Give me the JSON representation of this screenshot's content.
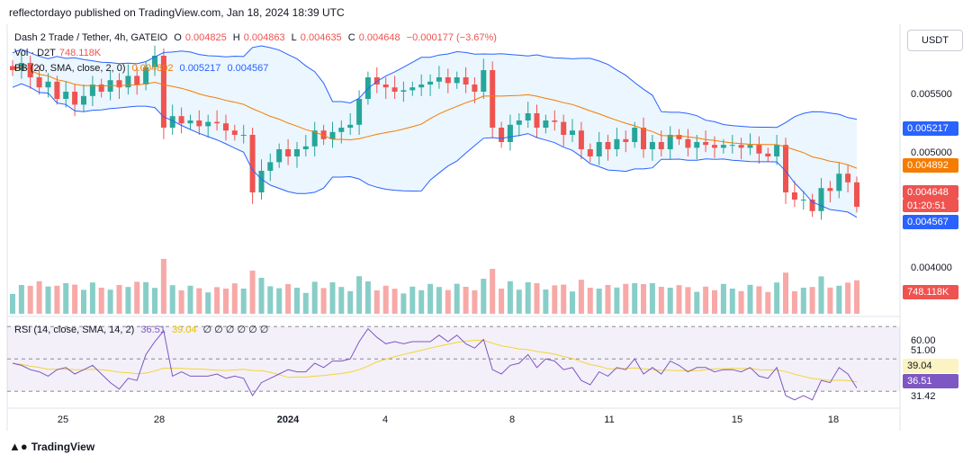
{
  "header": {
    "publisher": "reflectordayo published on TradingView.com, Jan 18, 2024 18:39 UTC"
  },
  "legend": {
    "symbol": "Dash 2 Trade / Tether, 4h, GATEIO",
    "o_label": "O",
    "o": "0.004825",
    "h_label": "H",
    "h": "0.004863",
    "l_label": "L",
    "l": "0.004635",
    "c_label": "C",
    "c": "0.004648",
    "change": "−0.000177 (−3.67%)",
    "vol_label": "Vol · D2T",
    "vol": "748.118K",
    "bb_label": "BB (20, SMA, close, 2, 0)",
    "bb_basis": "0.004892",
    "bb_upper": "0.005217",
    "bb_lower": "0.004567",
    "rsi_label": "RSI (14, close, SMA, 14, 2)",
    "rsi": "36.51",
    "rsi_ma": "39.04",
    "rsi_extra": "∅ ∅ ∅ ∅ ∅ ∅"
  },
  "currency_button": "USDT",
  "colors": {
    "up": "#26a69a",
    "down": "#ef5350",
    "band": "#2962ff",
    "basis": "#f57c00",
    "rsi_line": "#7e57c2",
    "rsi_ma": "#f5d430"
  },
  "price_tags": {
    "upper": "0.005217",
    "basis": "0.004892",
    "close": "0.004648",
    "countdown": "01:20:51",
    "lower": "0.004567",
    "volume": "748.118K",
    "rsi_ma": "39.04",
    "rsi": "36.51"
  },
  "chart_data": {
    "type": "candlestick",
    "interval": "4h",
    "price_axis": {
      "ticks": [
        "0.005500",
        "0.005000",
        "0.004000"
      ],
      "range": [
        0.0039,
        0.0059
      ]
    },
    "rsi_axis": {
      "ticks": [
        "60.00",
        "51.00",
        "31.42"
      ],
      "range": [
        28,
        68
      ]
    },
    "x_ticks": [
      "25",
      "28",
      "2024",
      "4",
      "8",
      "11",
      "15",
      "18"
    ],
    "close_series": [
      0.0056,
      0.00565,
      0.00555,
      0.00548,
      0.00552,
      0.0054,
      0.00545,
      0.00536,
      0.00542,
      0.0055,
      0.00545,
      0.00553,
      0.00548,
      0.00556,
      0.0055,
      0.00562,
      0.0057,
      0.0052,
      0.00528,
      0.00523,
      0.00525,
      0.00521,
      0.00524,
      0.00523,
      0.00518,
      0.00515,
      0.00515,
      0.00475,
      0.0049,
      0.00496,
      0.00505,
      0.005,
      0.00505,
      0.00507,
      0.00518,
      0.00512,
      0.00517,
      0.0052,
      0.00522,
      0.0054,
      0.00555,
      0.0055,
      0.00548,
      0.00545,
      0.00546,
      0.00548,
      0.0055,
      0.00552,
      0.00555,
      0.00551,
      0.00555,
      0.0055,
      0.00545,
      0.0056,
      0.0052,
      0.0051,
      0.00522,
      0.00525,
      0.0053,
      0.0052,
      0.00525,
      0.00524,
      0.00515,
      0.00518,
      0.00505,
      0.005,
      0.0051,
      0.00505,
      0.00512,
      0.0051,
      0.0052,
      0.00505,
      0.0051,
      0.00505,
      0.00515,
      0.00512,
      0.00506,
      0.0051,
      0.00508,
      0.00506,
      0.00508,
      0.00508,
      0.00506,
      0.00508,
      0.00502,
      0.005,
      0.00508,
      0.00475,
      0.0047,
      0.0047,
      0.00462,
      0.00478,
      0.00476,
      0.00488,
      0.00482,
      0.00465
    ],
    "rsi_series": [
      48,
      47,
      45,
      44,
      42,
      45,
      46,
      43,
      45,
      47,
      43,
      39,
      36,
      41,
      40,
      52,
      58,
      63,
      42,
      44,
      42,
      42,
      42,
      43,
      41,
      42,
      41,
      33,
      39,
      41,
      43,
      45,
      44,
      44,
      48,
      46,
      49,
      49,
      50,
      58,
      64,
      60,
      57,
      58,
      57,
      58,
      58,
      58,
      61,
      58,
      61,
      57,
      55,
      59,
      45,
      43,
      47,
      48,
      52,
      46,
      50,
      49,
      45,
      46,
      40,
      38,
      44,
      42,
      46,
      45,
      50,
      43,
      46,
      43,
      49,
      47,
      44,
      46,
      46,
      44,
      45,
      45,
      44,
      46,
      42,
      41,
      46,
      33,
      31,
      33,
      31,
      40,
      39,
      46,
      43,
      36.51
    ]
  }
}
